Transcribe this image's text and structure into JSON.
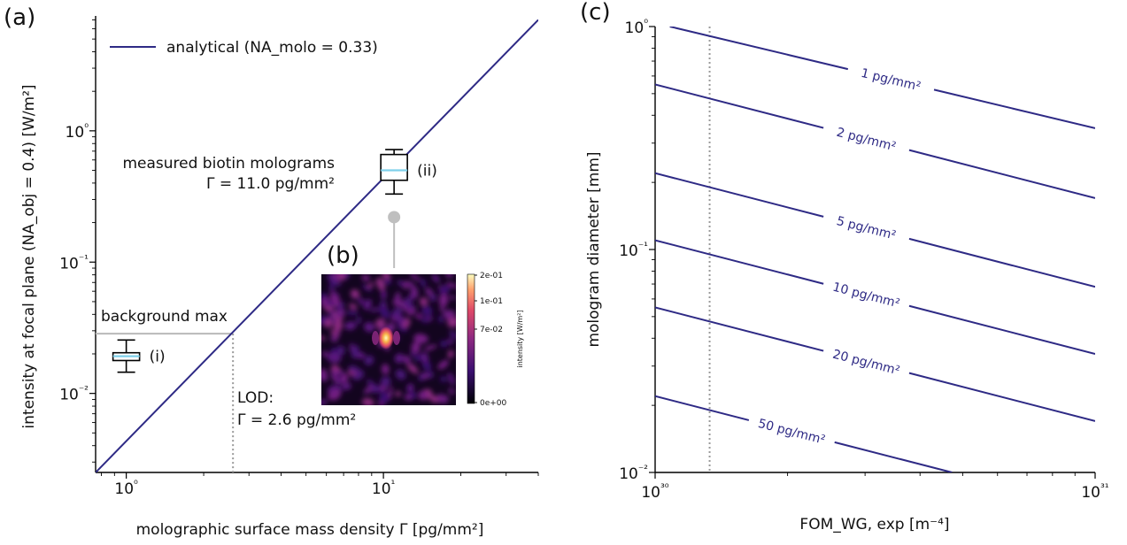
{
  "panels": {
    "a": "(a)",
    "b": "(b)",
    "c": "(c)"
  },
  "colors": {
    "line": "#2e2a85",
    "background": "#b9b9b9",
    "median": "#7fd0ea",
    "lod": "#9a9a9a",
    "marker": "#bfbfbf"
  },
  "chart_data": [
    {
      "id": "a",
      "type": "line",
      "title": "",
      "xlabel": "molographic surface mass density Γ [pg/mm²]",
      "ylabel": "intensity at focal plane (NA_obj = 0.4) [W/m²]",
      "xscale": "log",
      "yscale": "log",
      "xlim": [
        0.76,
        40
      ],
      "ylim": [
        0.0025,
        7.5
      ],
      "xticks": [
        1,
        10
      ],
      "xtick_labels": [
        "10⁰",
        "10¹"
      ],
      "yticks": [
        0.01,
        0.1,
        1
      ],
      "ytick_labels": [
        "10⁻²",
        "10⁻¹",
        "10⁰"
      ],
      "legend": {
        "position": "top-left",
        "entries": [
          {
            "name": "analytical (NA_molo = 0.33)"
          }
        ]
      },
      "series": [
        {
          "name": "analytical (NA_molo = 0.33)",
          "x": [
            0.76,
            40
          ],
          "y": [
            0.0025,
            7.0
          ]
        }
      ],
      "boxes": [
        {
          "label": "(i)",
          "x": 1.0,
          "whisker_low": 0.0145,
          "q1": 0.0178,
          "median": 0.0192,
          "q3": 0.0204,
          "whisker_high": 0.0255
        },
        {
          "label": "(ii)",
          "x": 11.0,
          "whisker_low": 0.33,
          "q1": 0.42,
          "median": 0.5,
          "q3": 0.66,
          "whisker_high": 0.72
        }
      ],
      "annotations": {
        "background": {
          "text": "background max",
          "value": 0.0285
        },
        "lod": {
          "title": "LOD:",
          "text": "Γ = 2.6  pg/mm²",
          "value": 2.6
        },
        "measured": {
          "line1": "measured biotin molograms",
          "line2": "Γ = 11.0  pg/mm²",
          "x": 11.0,
          "y": 0.22
        }
      }
    },
    {
      "id": "b",
      "type": "heatmap",
      "colorbar": {
        "label": "intensity [W/m²]",
        "tick_labels": [
          "2e-01",
          "1e-01",
          "7e-02",
          "0e+00"
        ]
      }
    },
    {
      "id": "c",
      "type": "line",
      "title": "",
      "xlabel": "FOM_WG, exp [m⁻⁴]",
      "ylabel": "mologram diameter [mm]",
      "xscale": "log",
      "yscale": "log",
      "xlim": [
        1e+30,
        1e+31
      ],
      "ylim": [
        0.01,
        1
      ],
      "xticks": [
        1e+30,
        1e+31
      ],
      "xtick_labels": [
        "10³⁰",
        "10³¹"
      ],
      "yticks": [
        0.01,
        0.1,
        1
      ],
      "ytick_labels": [
        "10⁻²",
        "10⁻¹",
        "10⁰"
      ],
      "vline_x": 1.33e+30,
      "series": [
        {
          "name": "1 pg/mm²",
          "x": [
            1.08e+30,
            1e+31
          ],
          "y": [
            1.0,
            0.35
          ]
        },
        {
          "name": "2 pg/mm²",
          "x": [
            1e+30,
            1e+31
          ],
          "y": [
            0.55,
            0.17
          ]
        },
        {
          "name": "5 pg/mm²",
          "x": [
            1e+30,
            1e+31
          ],
          "y": [
            0.22,
            0.068
          ]
        },
        {
          "name": "10 pg/mm²",
          "x": [
            1e+30,
            1e+31
          ],
          "y": [
            0.11,
            0.034
          ]
        },
        {
          "name": "20 pg/mm²",
          "x": [
            1e+30,
            1e+31
          ],
          "y": [
            0.055,
            0.017
          ]
        },
        {
          "name": "50 pg/mm²",
          "x": [
            1e+30,
            4.73e+30
          ],
          "y": [
            0.022,
            0.01
          ]
        }
      ]
    }
  ]
}
